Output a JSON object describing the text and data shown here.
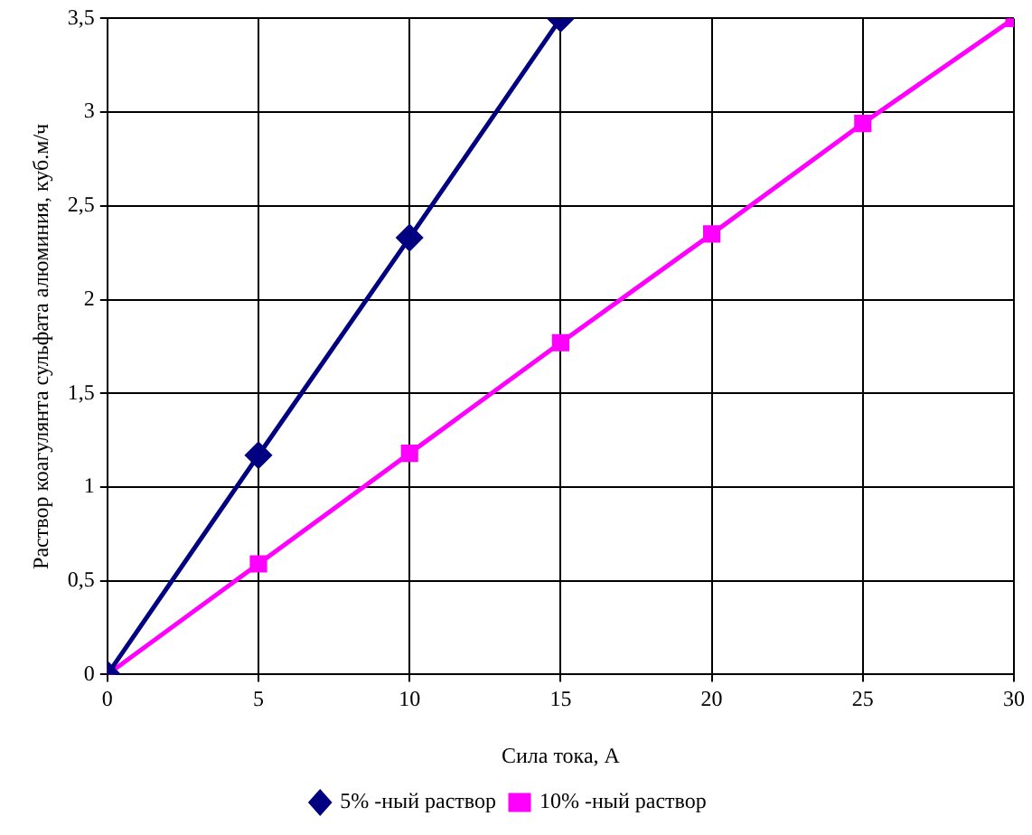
{
  "chart_data": {
    "type": "line",
    "xlabel": "Сила тока, А",
    "ylabel": "Раствор коагулянта сульфата алюминия, куб.м/ч",
    "xlim": [
      0,
      30
    ],
    "xticks": [
      0,
      5,
      10,
      15,
      20,
      25,
      30
    ],
    "ylim": [
      0,
      3.5
    ],
    "yticks": [
      0,
      {
        "value": 0.5,
        "label": "0,5"
      },
      1,
      {
        "value": 1.5,
        "label": "1,5"
      },
      2,
      {
        "value": 2.5,
        "label": "2,5"
      },
      3,
      {
        "value": 3.5,
        "label": "3,5"
      }
    ],
    "grid": true,
    "legend": "bottom",
    "line_style": "solid",
    "series": [
      {
        "name": "5% -ный раствор",
        "color": "#000080",
        "marker": "diamond",
        "x": [
          0,
          5,
          10,
          15
        ],
        "values": [
          0,
          1.17,
          2.33,
          3.5
        ]
      },
      {
        "name": "10% -ный раствор",
        "color": "#ff00ff",
        "marker": "square",
        "x": [
          0,
          5,
          10,
          15,
          20,
          25,
          30
        ],
        "values": [
          0,
          0.59,
          1.18,
          1.77,
          2.35,
          2.94,
          3.5
        ]
      }
    ]
  }
}
